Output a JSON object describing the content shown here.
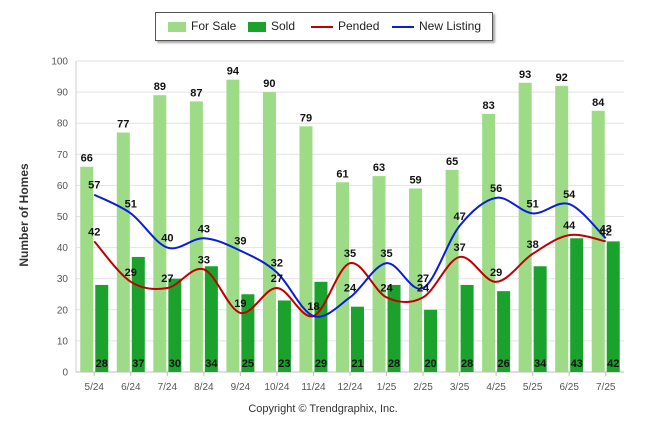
{
  "colors": {
    "for_sale": "#9ddb86",
    "sold": "#1aa22c",
    "pended": "#c00000",
    "new_listing": "#0a1ed6",
    "grid": "#e2e2e2",
    "axis_text": "#555555"
  },
  "legend": {
    "for_sale": "For Sale",
    "sold": "Sold",
    "pended": "Pended",
    "new_listing": "New Listing"
  },
  "copyright": "Copyright © Trendgraphix, Inc.",
  "chart_data": {
    "type": "bar",
    "ylabel": "Number of Homes",
    "xlabel": "",
    "ylim": [
      0,
      100
    ],
    "yticks": [
      0,
      10,
      20,
      30,
      40,
      50,
      60,
      70,
      80,
      90,
      100
    ],
    "grid": true,
    "legend_position": "top",
    "categories": [
      "5/24",
      "6/24",
      "7/24",
      "8/24",
      "9/24",
      "10/24",
      "11/24",
      "12/24",
      "1/25",
      "2/25",
      "3/25",
      "4/25",
      "5/25",
      "6/25",
      "7/25"
    ],
    "series": [
      {
        "name": "For Sale",
        "type": "bar",
        "values": [
          66,
          77,
          89,
          87,
          94,
          90,
          79,
          61,
          63,
          59,
          65,
          83,
          93,
          92,
          84
        ]
      },
      {
        "name": "Sold",
        "type": "bar",
        "values": [
          28,
          37,
          30,
          34,
          25,
          23,
          29,
          21,
          28,
          20,
          28,
          26,
          34,
          43,
          42
        ]
      },
      {
        "name": "Pended",
        "type": "line",
        "values": [
          42,
          29,
          27,
          33,
          19,
          27,
          18,
          35,
          24,
          24,
          37,
          29,
          38,
          44,
          42
        ]
      },
      {
        "name": "New Listing",
        "type": "line",
        "values": [
          57,
          51,
          40,
          43,
          39,
          32,
          18,
          24,
          35,
          27,
          47,
          56,
          51,
          54,
          43
        ]
      }
    ]
  }
}
